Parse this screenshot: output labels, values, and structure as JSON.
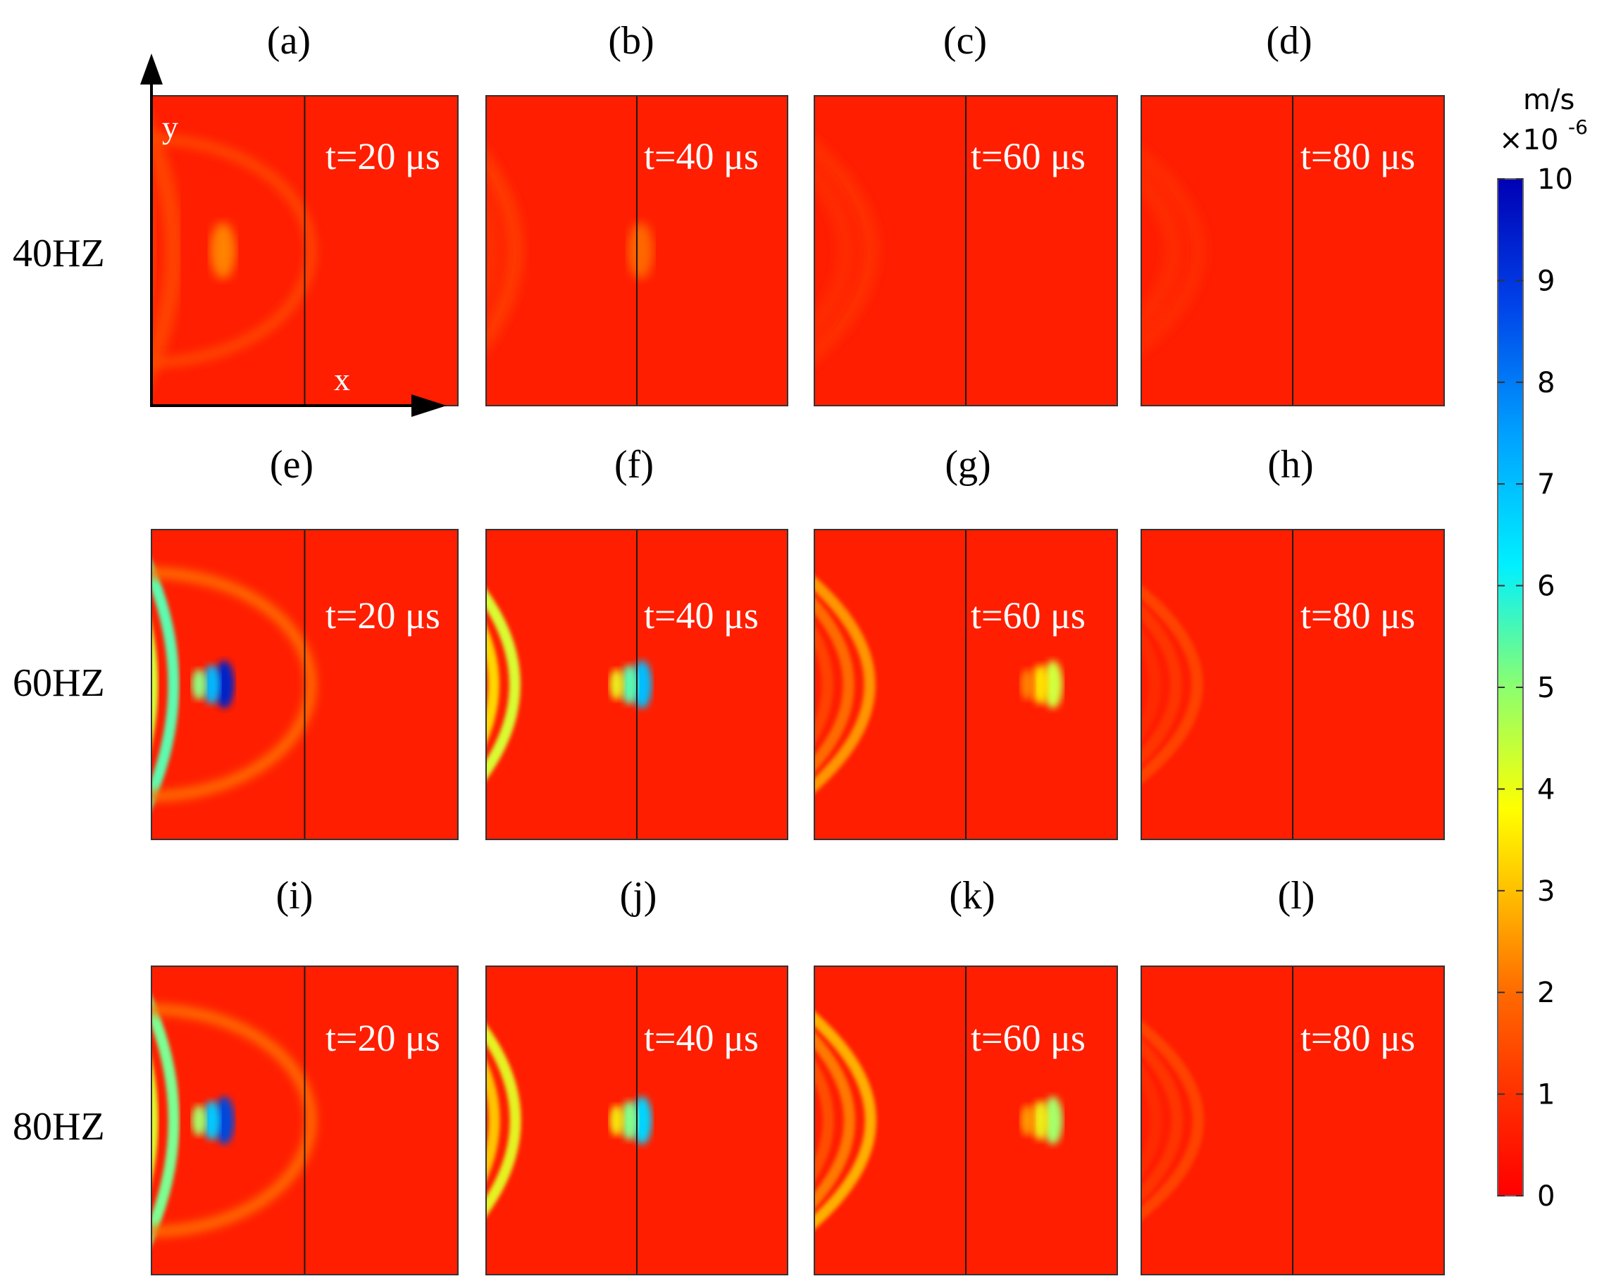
{
  "panel_labels": [
    "(a)",
    "(b)",
    "(c)",
    "(d)",
    "(e)",
    "(f)",
    "(g)",
    "(h)",
    "(i)",
    "(j)",
    "(k)",
    "(l)"
  ],
  "row_labels": [
    "40HZ",
    "60HZ",
    "80HZ"
  ],
  "time_labels": [
    "t=20 μs",
    "t=40 μs",
    "t=60 μs",
    "t=80 μs"
  ],
  "axes": {
    "y_label": "y",
    "x_label": "x"
  },
  "colorbar": {
    "unit": "m/s",
    "scale_base": "×10",
    "scale_exp": "-6",
    "ticks": [
      "10",
      "9",
      "8",
      "7",
      "6",
      "5",
      "4",
      "3",
      "2",
      "1",
      "0"
    ],
    "min": 0,
    "max": 10,
    "colormap": [
      "#ff0000",
      "#ff5a00",
      "#ffa500",
      "#ffff00",
      "#7fff7f",
      "#00ffff",
      "#007fff",
      "#0000c8"
    ]
  },
  "background_color": "#ff1e00",
  "wave_peak_levels": [
    [
      2.0,
      1.6,
      1.2,
      0.8
    ],
    [
      9.5,
      7.0,
      4.0,
      2.0
    ],
    [
      9.0,
      6.5,
      4.5,
      2.0
    ]
  ]
}
